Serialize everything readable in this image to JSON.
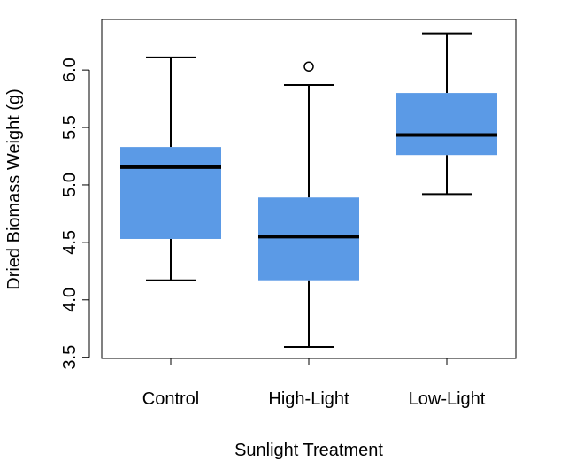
{
  "chart_data": {
    "type": "boxplot",
    "title": "",
    "xlabel": "Sunlight Treatment",
    "ylabel": "Dried Biomass Weight (g)",
    "ylim": [
      3.49,
      6.44
    ],
    "yticks": [
      3.5,
      4.0,
      4.5,
      5.0,
      5.5,
      6.0
    ],
    "ytick_labels": [
      "3.5",
      "4.0",
      "4.5",
      "5.0",
      "5.5",
      "6.0"
    ],
    "categories": [
      "Control",
      "High-Light",
      "Low-Light"
    ],
    "box_color": "#5b9ae6",
    "boxes": [
      {
        "category": "Control",
        "whisker_low": 4.17,
        "q1": 4.53,
        "median": 5.155,
        "q3": 5.33,
        "whisker_high": 6.11,
        "outliers": []
      },
      {
        "category": "High-Light",
        "whisker_low": 3.59,
        "q1": 4.17,
        "median": 4.55,
        "q3": 4.89,
        "whisker_high": 5.87,
        "outliers": [
          6.03
        ]
      },
      {
        "category": "Low-Light",
        "whisker_low": 4.92,
        "q1": 5.26,
        "median": 5.435,
        "q3": 5.8,
        "whisker_high": 6.32,
        "outliers": []
      }
    ],
    "grid": false,
    "legend": false
  }
}
